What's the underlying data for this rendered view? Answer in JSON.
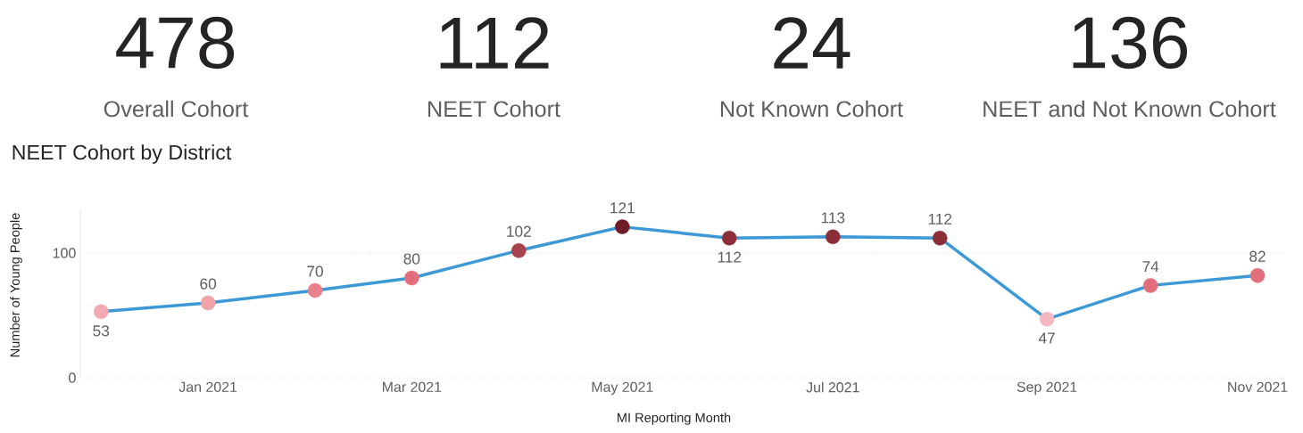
{
  "chart_data": [
    {
      "type": "other",
      "annotations": [
        "478",
        "Overall Cohort",
        "112",
        "NEET Cohort",
        "24",
        "Not Known Cohort",
        "136",
        "NEET and Not Known Cohort"
      ]
    },
    {
      "type": "line",
      "title": "NEET Cohort by District",
      "xlabel": "MI Reporting Month",
      "ylabel": "Number of Young People",
      "x": [
        "2020-12",
        "2021-01",
        "2021-02",
        "2021-03",
        "2021-04",
        "2021-05",
        "2021-06",
        "2021-07",
        "2021-08",
        "2021-09",
        "2021-10",
        "2021-11"
      ],
      "values": [
        53,
        60,
        70,
        80,
        102,
        121,
        112,
        113,
        112,
        47,
        74,
        82
      ],
      "color": "#3d99d6",
      "colors": [
        "#f2a9b1",
        "#efa2aa",
        "#e8808c",
        "#e26e7c",
        "#a8434d",
        "#6e1c26",
        "#8a2e37",
        "#8a2e37",
        "#8a2e37",
        "#f4b9c0",
        "#e26e7c",
        "#e26e7c"
      ],
      "xlim": [
        "2020-11-25",
        "2021-11-09"
      ],
      "ylim": [
        0,
        135
      ],
      "xticks": [
        {
          "value": "2021-01",
          "label": "Jan 2021"
        },
        {
          "value": "2021-03",
          "label": "Mar 2021"
        },
        {
          "value": "2021-05",
          "label": "May 2021"
        },
        {
          "value": "2021-07",
          "label": "Jul 2021"
        },
        {
          "value": "2021-09",
          "label": "Sep 2021"
        },
        {
          "value": "2021-11",
          "label": "Nov 2021"
        }
      ],
      "yticks": [
        0,
        100
      ],
      "grid": "y",
      "marker": "circle",
      "line_style": "solid",
      "data_labels": true
    }
  ]
}
